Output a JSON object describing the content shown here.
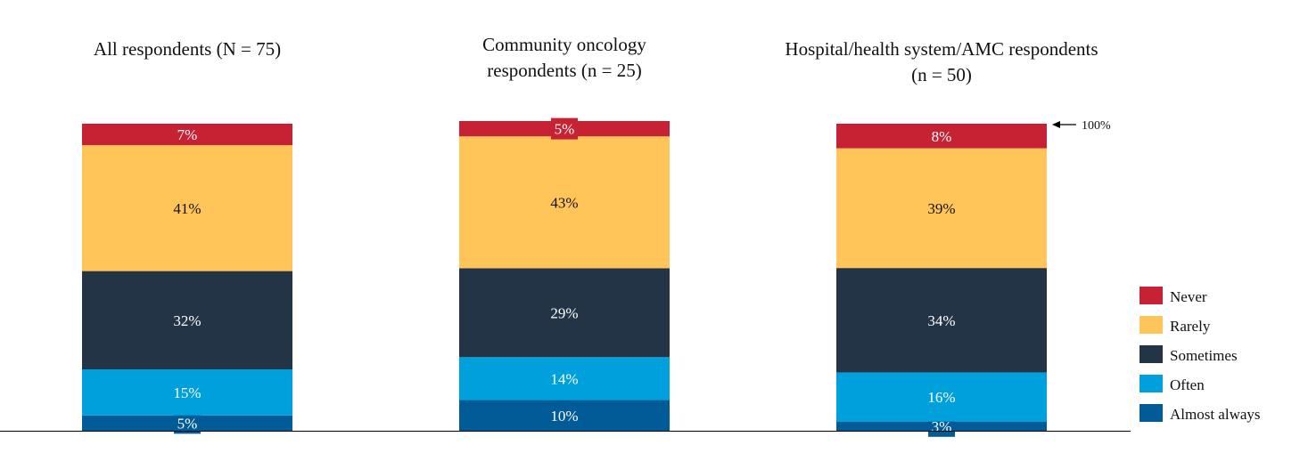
{
  "chart_data": {
    "type": "bar",
    "stacked": true,
    "categories": [
      [
        "All respondents (N = 75)"
      ],
      [
        "Community oncology",
        "respondents (n = 25)"
      ],
      [
        "Hospital/health system/AMC respondents",
        "(n = 50)"
      ]
    ],
    "series": [
      {
        "name": "Almost always",
        "color": "#005B96",
        "values": [
          5,
          10,
          3
        ]
      },
      {
        "name": "Often",
        "color": "#00A0DC",
        "values": [
          15,
          14,
          16
        ]
      },
      {
        "name": "Sometimes",
        "color": "#243447",
        "values": [
          32,
          29,
          34
        ]
      },
      {
        "name": "Rarely",
        "color": "#FFC559",
        "values": [
          41,
          43,
          39
        ]
      },
      {
        "name": "Never",
        "color": "#C62233",
        "values": [
          7,
          5,
          8
        ]
      }
    ],
    "legend_order": [
      "Never",
      "Rarely",
      "Sometimes",
      "Often",
      "Almost always"
    ],
    "legend_position": "right",
    "annotation": "100%",
    "ylim": [
      0,
      100
    ],
    "grid": false
  }
}
